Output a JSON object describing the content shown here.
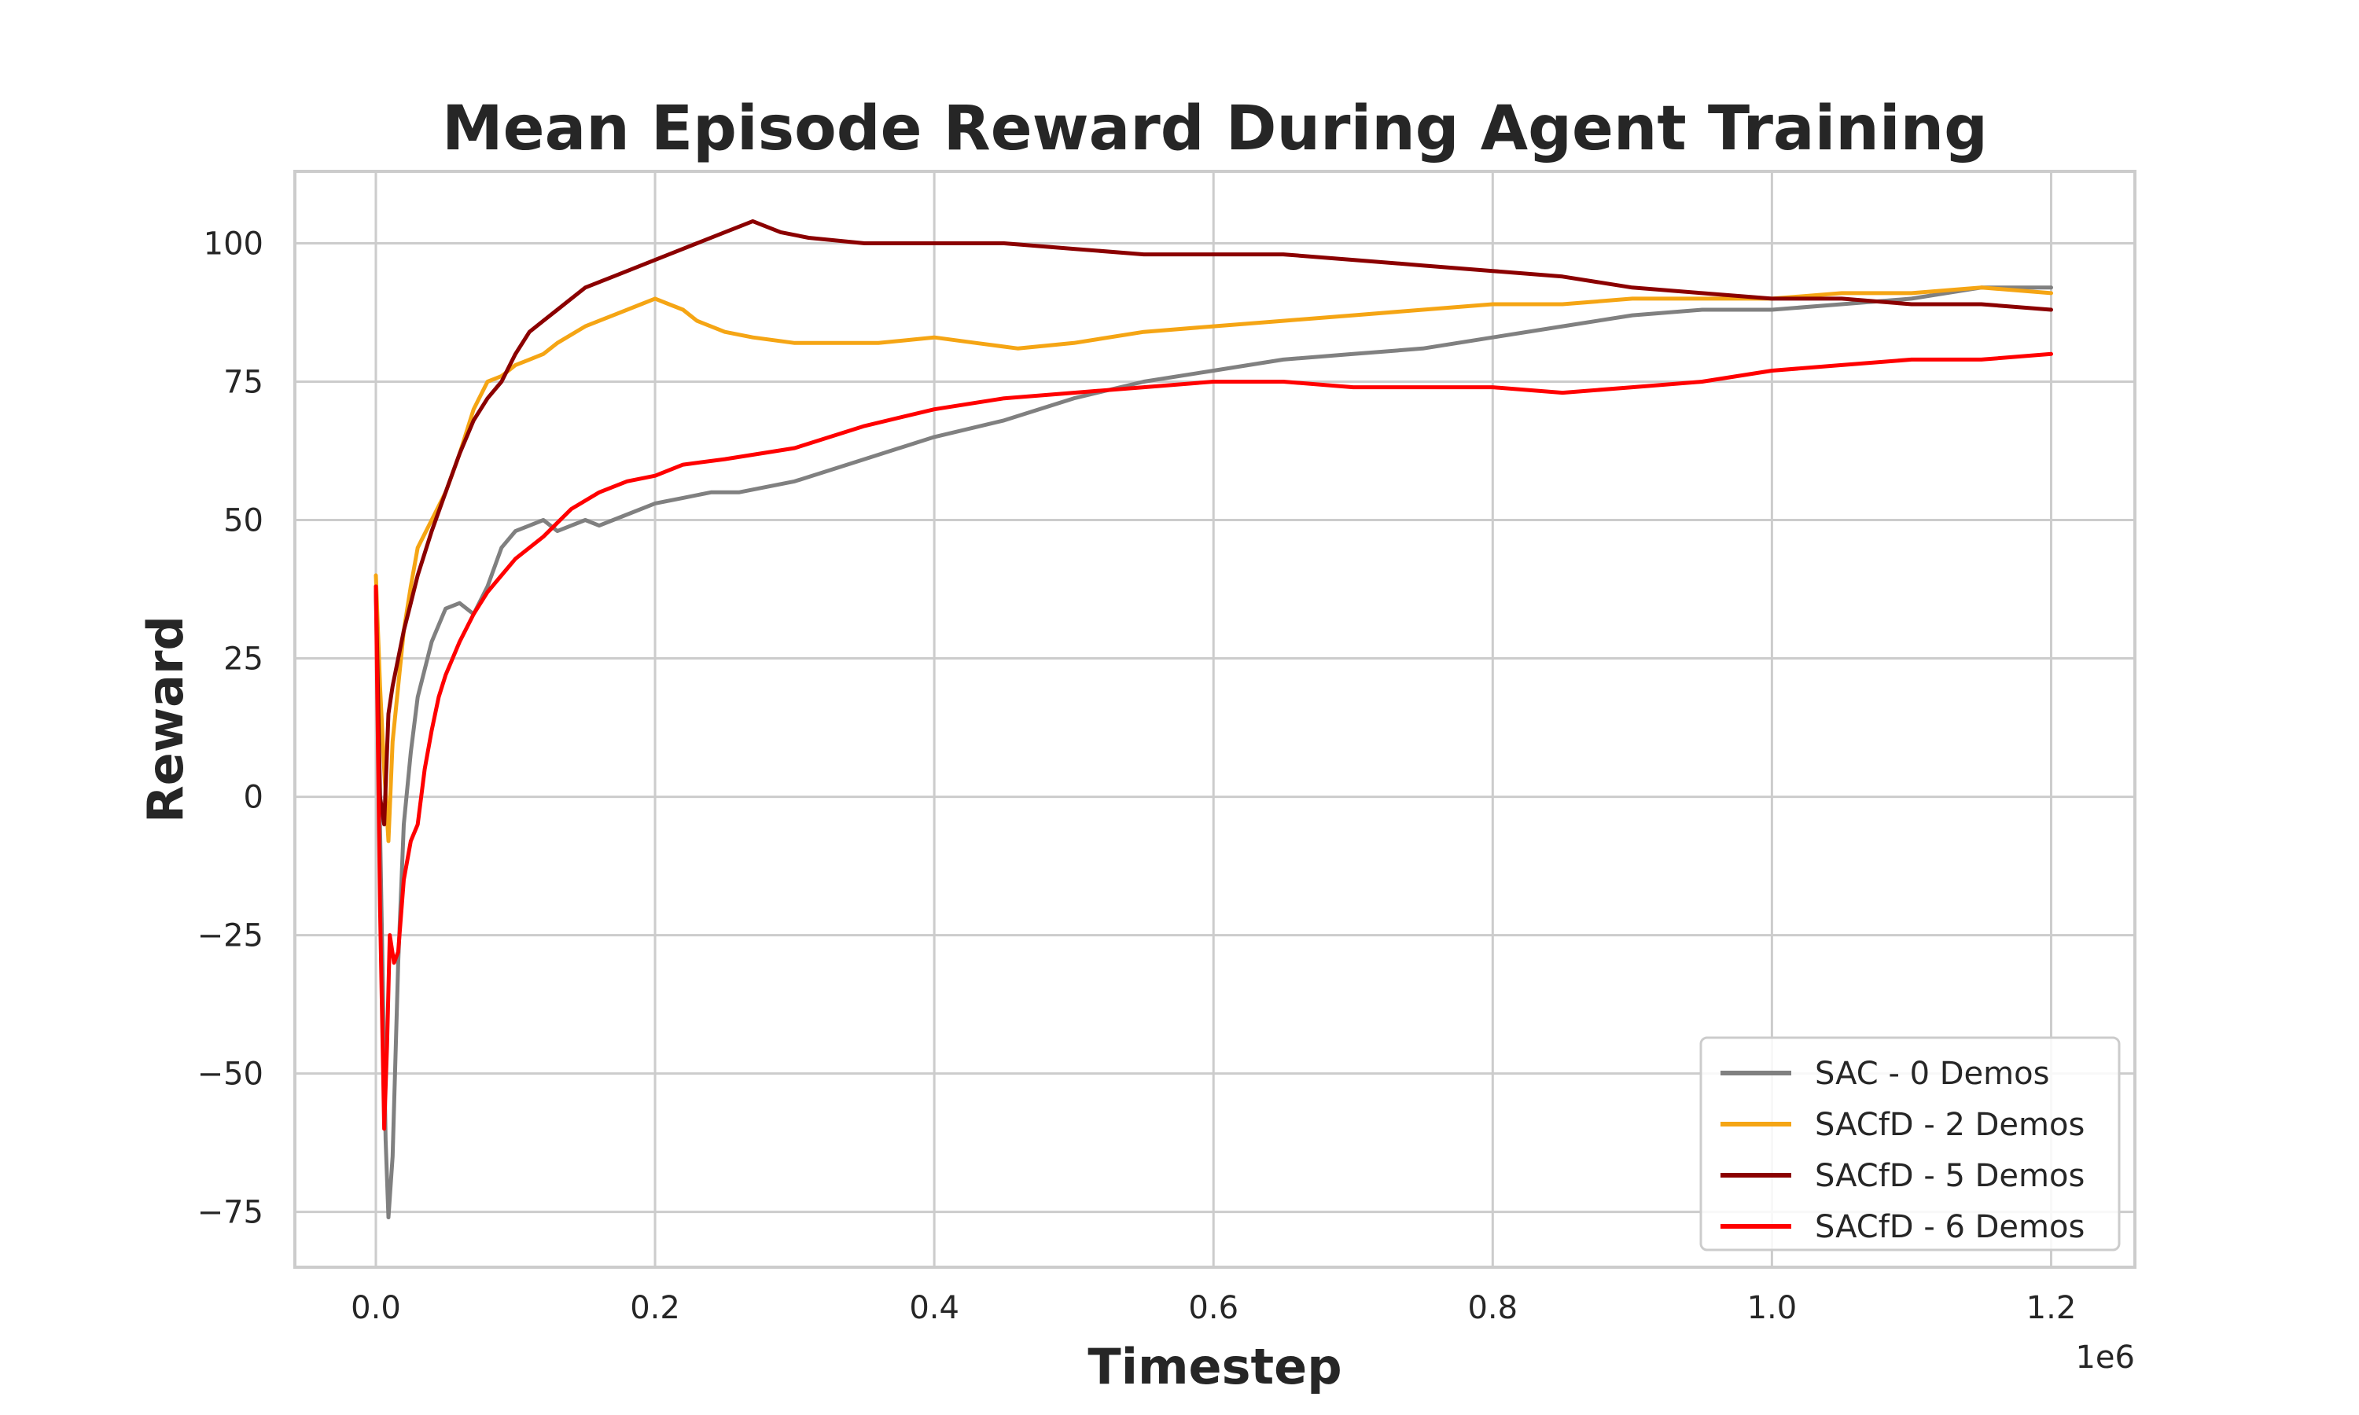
{
  "chart_data": {
    "type": "line",
    "title": "Mean Episode Reward During Agent Training",
    "xlabel": "Timestep",
    "ylabel": "Reward",
    "x_offset_text": "1e6",
    "xlim": [
      -0.058,
      1.26
    ],
    "ylim": [
      -85,
      113
    ],
    "xticks": [
      0.0,
      0.2,
      0.4,
      0.6,
      0.8,
      1.0,
      1.2
    ],
    "xtick_labels": [
      "0.0",
      "0.2",
      "0.4",
      "0.6",
      "0.8",
      "1.0",
      "1.2"
    ],
    "yticks": [
      -75,
      -50,
      -25,
      0,
      25,
      50,
      75,
      100
    ],
    "ytick_labels": [
      "−75",
      "−50",
      "−25",
      "0",
      "25",
      "50",
      "75",
      "100"
    ],
    "grid": true,
    "legend_position": "lower-right",
    "series": [
      {
        "name": "SAC - 0 Demos",
        "color": "#808080",
        "x": [
          0.0,
          0.004,
          0.007,
          0.009,
          0.012,
          0.016,
          0.02,
          0.025,
          0.03,
          0.04,
          0.05,
          0.06,
          0.07,
          0.08,
          0.09,
          0.1,
          0.11,
          0.12,
          0.13,
          0.14,
          0.15,
          0.16,
          0.17,
          0.18,
          0.2,
          0.22,
          0.24,
          0.26,
          0.28,
          0.3,
          0.35,
          0.4,
          0.45,
          0.5,
          0.55,
          0.6,
          0.65,
          0.7,
          0.75,
          0.8,
          0.85,
          0.9,
          0.95,
          1.0,
          1.05,
          1.1,
          1.15,
          1.18,
          1.2
        ],
        "y": [
          37,
          -20,
          -62,
          -76,
          -65,
          -30,
          -5,
          8,
          18,
          28,
          34,
          35,
          33,
          38,
          45,
          48,
          49,
          50,
          48,
          49,
          50,
          49,
          50,
          51,
          53,
          54,
          55,
          55,
          56,
          57,
          61,
          65,
          68,
          72,
          75,
          77,
          79,
          80,
          81,
          83,
          85,
          87,
          88,
          88,
          89,
          90,
          92,
          92,
          92
        ]
      },
      {
        "name": "SACfD - 2 Demos",
        "color": "#f5a514",
        "x": [
          0.0,
          0.003,
          0.006,
          0.009,
          0.012,
          0.016,
          0.02,
          0.025,
          0.03,
          0.04,
          0.05,
          0.06,
          0.07,
          0.08,
          0.09,
          0.1,
          0.11,
          0.12,
          0.13,
          0.15,
          0.17,
          0.19,
          0.2,
          0.21,
          0.22,
          0.23,
          0.25,
          0.27,
          0.3,
          0.33,
          0.36,
          0.4,
          0.43,
          0.46,
          0.5,
          0.55,
          0.6,
          0.65,
          0.7,
          0.75,
          0.8,
          0.85,
          0.9,
          0.95,
          1.0,
          1.05,
          1.1,
          1.15,
          1.2
        ],
        "y": [
          40,
          20,
          5,
          -8,
          10,
          20,
          30,
          38,
          45,
          50,
          55,
          62,
          70,
          75,
          76,
          78,
          79,
          80,
          82,
          85,
          87,
          89,
          90,
          89,
          88,
          86,
          84,
          83,
          82,
          82,
          82,
          83,
          82,
          81,
          82,
          84,
          85,
          86,
          87,
          88,
          89,
          89,
          90,
          90,
          90,
          91,
          91,
          92,
          91
        ]
      },
      {
        "name": "SACfD - 5 Demos",
        "color": "#8b0000",
        "x": [
          0.0,
          0.003,
          0.006,
          0.009,
          0.012,
          0.016,
          0.02,
          0.025,
          0.03,
          0.04,
          0.05,
          0.06,
          0.07,
          0.08,
          0.09,
          0.1,
          0.11,
          0.12,
          0.13,
          0.14,
          0.15,
          0.17,
          0.19,
          0.21,
          0.23,
          0.25,
          0.26,
          0.27,
          0.29,
          0.31,
          0.35,
          0.4,
          0.45,
          0.5,
          0.55,
          0.6,
          0.65,
          0.7,
          0.75,
          0.8,
          0.85,
          0.9,
          0.95,
          1.0,
          1.05,
          1.1,
          1.15,
          1.2
        ],
        "y": [
          38,
          0,
          -5,
          15,
          20,
          25,
          30,
          35,
          40,
          48,
          55,
          62,
          68,
          72,
          75,
          80,
          84,
          86,
          88,
          90,
          92,
          94,
          96,
          98,
          100,
          102,
          103,
          104,
          102,
          101,
          100,
          100,
          100,
          99,
          98,
          98,
          98,
          97,
          96,
          95,
          94,
          92,
          91,
          90,
          90,
          89,
          89,
          88
        ]
      },
      {
        "name": "SACfD - 6 Demos",
        "color": "#ff0000",
        "x": [
          0.0,
          0.003,
          0.006,
          0.008,
          0.01,
          0.013,
          0.016,
          0.02,
          0.025,
          0.03,
          0.035,
          0.04,
          0.045,
          0.05,
          0.06,
          0.07,
          0.08,
          0.09,
          0.1,
          0.12,
          0.14,
          0.16,
          0.18,
          0.2,
          0.22,
          0.25,
          0.3,
          0.35,
          0.4,
          0.45,
          0.5,
          0.55,
          0.6,
          0.65,
          0.7,
          0.75,
          0.8,
          0.85,
          0.9,
          0.95,
          1.0,
          1.05,
          1.1,
          1.15,
          1.2
        ],
        "y": [
          38,
          -20,
          -60,
          -45,
          -25,
          -30,
          -28,
          -15,
          -8,
          -5,
          5,
          12,
          18,
          22,
          28,
          33,
          37,
          40,
          43,
          47,
          52,
          55,
          57,
          58,
          60,
          61,
          63,
          67,
          70,
          72,
          73,
          74,
          75,
          75,
          74,
          74,
          74,
          73,
          74,
          75,
          77,
          78,
          79,
          79,
          80
        ]
      }
    ]
  }
}
